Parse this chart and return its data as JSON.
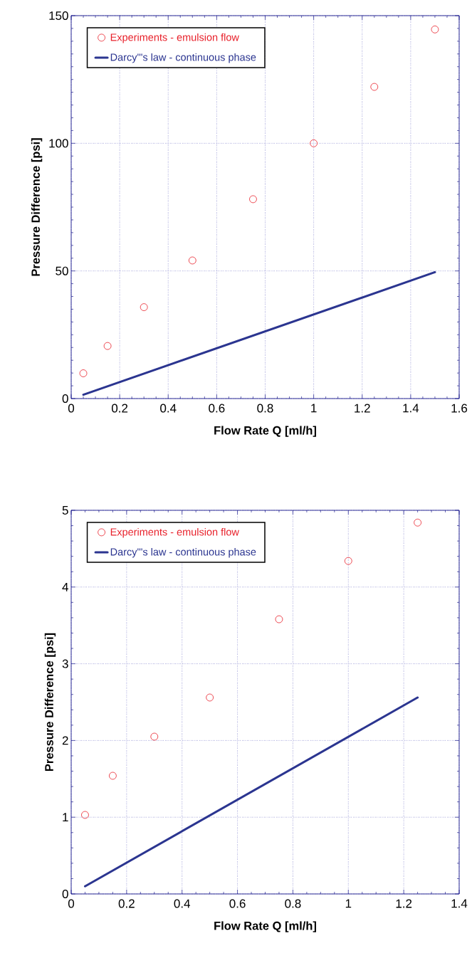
{
  "chart_data": [
    {
      "type": "scatter",
      "xlabel": "Flow Rate Q [ml/h]",
      "ylabel": "Pressure Difference [psi]",
      "xlim": [
        0,
        1.6
      ],
      "ylim": [
        0,
        150
      ],
      "xticks": [
        0,
        0.2,
        0.4,
        0.6,
        0.8,
        1,
        1.2,
        1.4,
        1.6
      ],
      "yticks": [
        0,
        50,
        100,
        150
      ],
      "grid": true,
      "legend": "top left",
      "series": [
        {
          "name": "Experiments - emulsion flow",
          "marker": "circle",
          "color": "#e8202a",
          "x": [
            0.05,
            0.15,
            0.3,
            0.5,
            0.75,
            1.0,
            1.25,
            1.5
          ],
          "values": [
            9.9,
            20.6,
            35.8,
            54.1,
            78.1,
            100,
            122.1,
            144.6
          ]
        },
        {
          "name": "Darcy'\"s law - continuous phase",
          "type": "line",
          "line_style": "solid",
          "color": "#2b3590",
          "x": [
            0.05,
            1.5
          ],
          "values": [
            1.5,
            49.5
          ]
        }
      ]
    },
    {
      "type": "scatter",
      "xlabel": "Flow Rate Q [ml/h]",
      "ylabel": "Pressure Difference [psi]",
      "xlim": [
        0,
        1.4
      ],
      "ylim": [
        0,
        5
      ],
      "xticks": [
        0,
        0.2,
        0.4,
        0.6,
        0.8,
        1,
        1.2,
        1.4
      ],
      "yticks": [
        0,
        1,
        2,
        3,
        4,
        5
      ],
      "grid": true,
      "legend": "top left",
      "series": [
        {
          "name": "Experiments - emulsion flow",
          "marker": "circle",
          "color": "#e8202a",
          "x": [
            0.05,
            0.15,
            0.3,
            0.5,
            0.75,
            1.0,
            1.25
          ],
          "values": [
            1.03,
            1.54,
            2.05,
            2.56,
            3.58,
            4.34,
            4.84
          ]
        },
        {
          "name": "Darcy'\"s law - continuous phase",
          "type": "line",
          "line_style": "solid",
          "color": "#2b3590",
          "x": [
            0.05,
            1.25
          ],
          "values": [
            0.1,
            2.56
          ]
        }
      ]
    }
  ]
}
